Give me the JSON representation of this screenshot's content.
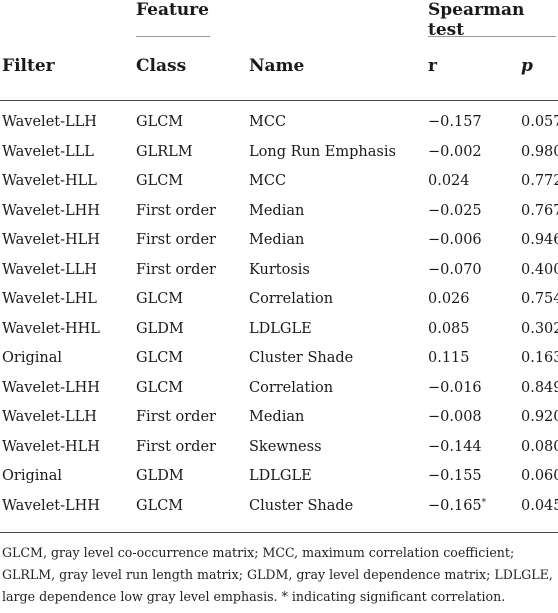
{
  "header": {
    "group_feature": "Feature",
    "group_spearman": "Spearman test",
    "col_filter": "Filter",
    "col_class": "Class",
    "col_name": "Name",
    "col_r": "r",
    "col_p": "p"
  },
  "rows": [
    {
      "filter": "Wavelet-LLH",
      "class": "GLCM",
      "name": "MCC",
      "r": "−0.157",
      "r_mark": "",
      "p": "0.057"
    },
    {
      "filter": "Wavelet-LLL",
      "class": "GLRLM",
      "name": "Long Run Emphasis",
      "r": "−0.002",
      "r_mark": "",
      "p": "0.980"
    },
    {
      "filter": "Wavelet-HLL",
      "class": "GLCM",
      "name": "MCC",
      "r": "0.024",
      "r_mark": "",
      "p": "0.772"
    },
    {
      "filter": "Wavelet-LHH",
      "class": "First order",
      "name": "Median",
      "r": "−0.025",
      "r_mark": "",
      "p": "0.767"
    },
    {
      "filter": "Wavelet-HLH",
      "class": "First order",
      "name": "Median",
      "r": "−0.006",
      "r_mark": "",
      "p": "0.946"
    },
    {
      "filter": "Wavelet-LLH",
      "class": "First order",
      "name": "Kurtosis",
      "r": "−0.070",
      "r_mark": "",
      "p": "0.400"
    },
    {
      "filter": "Wavelet-LHL",
      "class": "GLCM",
      "name": "Correlation",
      "r": "0.026",
      "r_mark": "",
      "p": "0.754"
    },
    {
      "filter": "Wavelet-HHL",
      "class": "GLDM",
      "name": "LDLGLE",
      "r": "0.085",
      "r_mark": "",
      "p": "0.302"
    },
    {
      "filter": "Original",
      "class": "GLCM",
      "name": "Cluster Shade",
      "r": "0.115",
      "r_mark": "",
      "p": "0.163"
    },
    {
      "filter": "Wavelet-LHH",
      "class": "GLCM",
      "name": "Correlation",
      "r": "−0.016",
      "r_mark": "",
      "p": "0.849"
    },
    {
      "filter": "Wavelet-LLH",
      "class": "First order",
      "name": "Median",
      "r": "−0.008",
      "r_mark": "",
      "p": "0.920"
    },
    {
      "filter": "Wavelet-HLH",
      "class": "First order",
      "name": "Skewness",
      "r": "−0.144",
      "r_mark": "",
      "p": "0.080"
    },
    {
      "filter": "Original",
      "class": "GLDM",
      "name": "LDLGLE",
      "r": "−0.155",
      "r_mark": "",
      "p": "0.060"
    },
    {
      "filter": "Wavelet-LHH",
      "class": "GLCM",
      "name": "Cluster Shade",
      "r": "−0.165",
      "r_mark": "*",
      "p": "0.045"
    }
  ],
  "footnote": "GLCM, gray level co-occurrence matrix; MCC, maximum correlation coefficient; GLRLM, gray level run length matrix; GLDM, gray level dependence matrix; LDLGLE, large dependence low gray level emphasis. * indicating significant correlation."
}
